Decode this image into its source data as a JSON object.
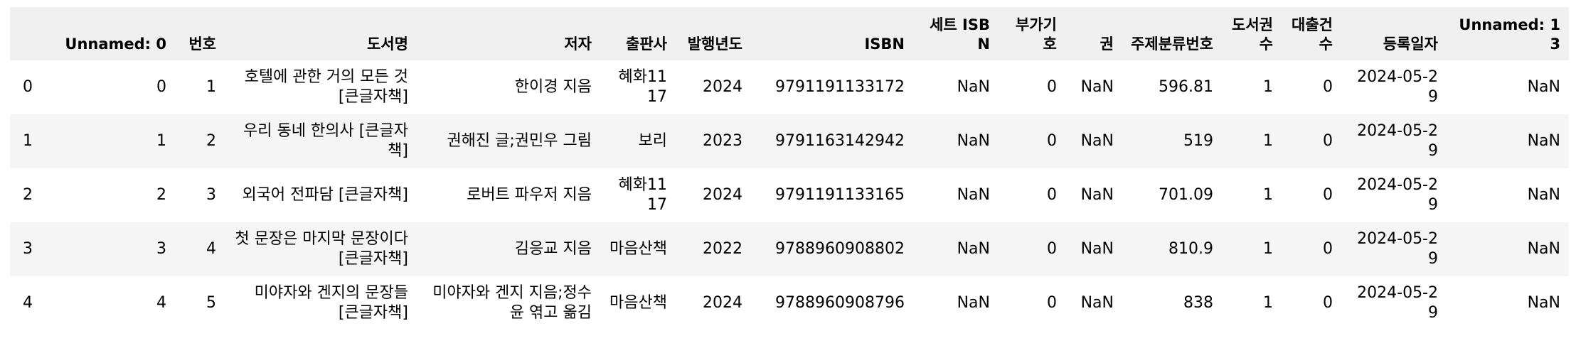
{
  "table": {
    "columns": [
      "",
      "Unnamed: 0",
      "번호",
      "도서명",
      "저자",
      "출판사",
      "발행년도",
      "ISBN",
      "세트 ISBN",
      "부가기호",
      "권",
      "주제분류번호",
      "도서권수",
      "대출건수",
      "등록일자",
      "Unnamed: 13"
    ],
    "rows": [
      [
        "0",
        "0",
        "1",
        "호텔에 관한 거의 모든 것 [큰글자책]",
        "한이경 지음",
        "혜화1117",
        "2024",
        "9791191133172",
        "NaN",
        "0",
        "NaN",
        "596.81",
        "1",
        "0",
        "2024-05-29",
        "NaN"
      ],
      [
        "1",
        "1",
        "2",
        "우리 동네 한의사 [큰글자책]",
        "권해진 글;권민우 그림",
        "보리",
        "2023",
        "9791163142942",
        "NaN",
        "0",
        "NaN",
        "519",
        "1",
        "0",
        "2024-05-29",
        "NaN"
      ],
      [
        "2",
        "2",
        "3",
        "외국어 전파담 [큰글자책]",
        "로버트 파우저 지음",
        "혜화1117",
        "2024",
        "9791191133165",
        "NaN",
        "0",
        "NaN",
        "701.09",
        "1",
        "0",
        "2024-05-29",
        "NaN"
      ],
      [
        "3",
        "3",
        "4",
        "첫 문장은 마지막 문장이다 [큰글자책]",
        "김응교 지음",
        "마음산책",
        "2022",
        "9788960908802",
        "NaN",
        "0",
        "NaN",
        "810.9",
        "1",
        "0",
        "2024-05-29",
        "NaN"
      ],
      [
        "4",
        "4",
        "5",
        "미야자와 겐지의 문장들 [큰글자책]",
        "미야자와 겐지 지음;정수윤 엮고 옮김",
        "마음산책",
        "2024",
        "9788960908796",
        "NaN",
        "0",
        "NaN",
        "838",
        "1",
        "0",
        "2024-05-29",
        "NaN"
      ]
    ]
  }
}
